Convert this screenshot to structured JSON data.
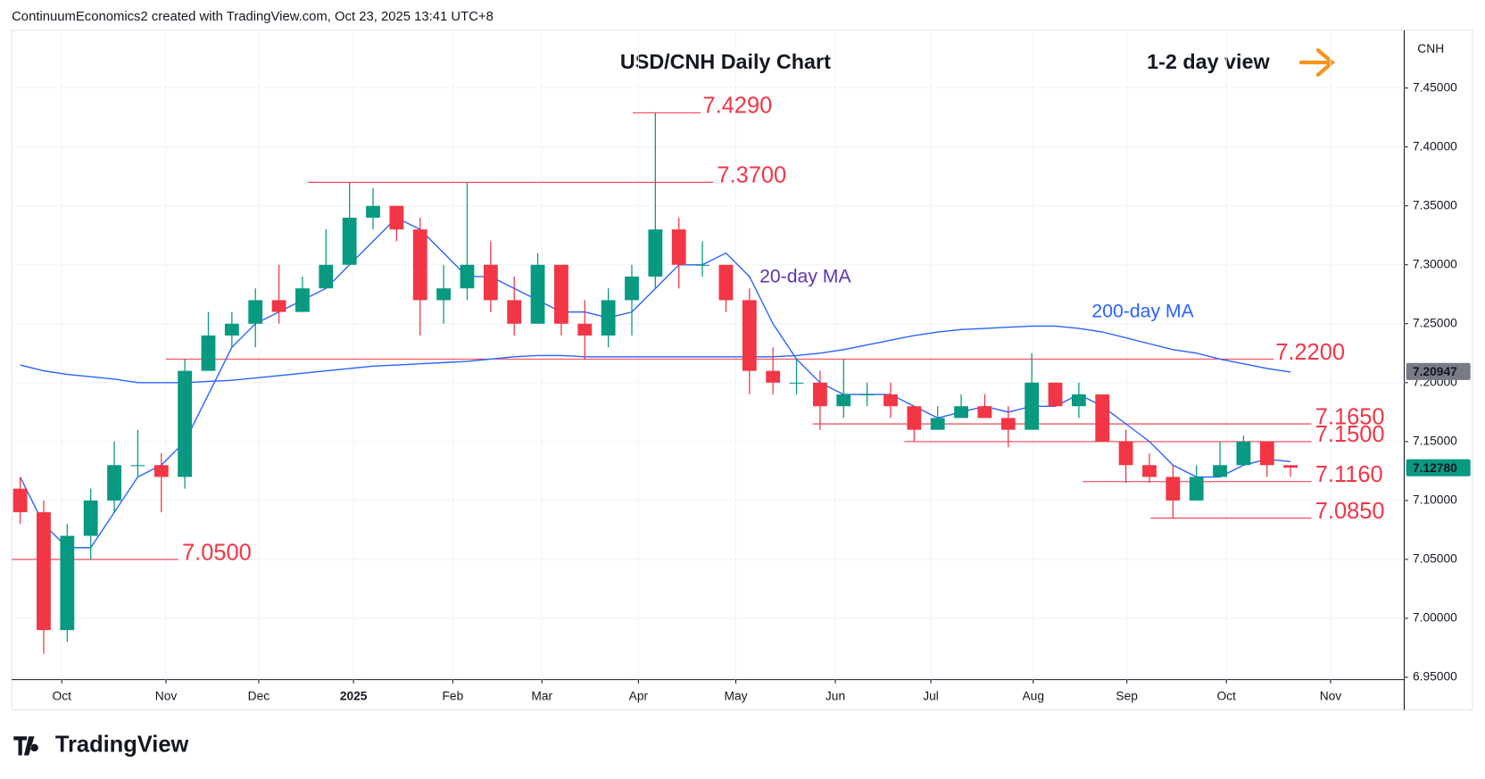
{
  "chart_data": {
    "type": "candlestick",
    "header": "ContinuumEconomics2 created with TradingView.com, Oct 23, 2025 13:41 UTC+8",
    "title": "USD/CNH Daily Chart",
    "view_label": "1-2 day view",
    "axis_unit": "CNH",
    "logo": "TradingView",
    "categories": [
      null,
      null,
      null,
      null,
      null,
      null,
      null,
      null,
      null,
      null,
      null,
      null,
      null,
      null,
      null,
      null,
      null,
      null,
      null,
      null,
      null,
      null,
      null,
      null,
      null,
      null,
      null,
      null,
      null,
      null,
      null,
      null,
      null,
      null,
      null,
      null,
      null,
      null,
      null,
      null,
      null,
      null,
      null,
      null,
      null,
      null,
      null,
      null,
      null,
      null,
      null,
      null,
      null,
      null,
      null
    ],
    "open": [
      7.11,
      7.09,
      6.99,
      7.07,
      7.1,
      7.13,
      7.13,
      7.12,
      7.21,
      7.24,
      7.25,
      7.27,
      7.26,
      7.28,
      7.3,
      7.34,
      7.35,
      7.33,
      7.27,
      7.28,
      7.3,
      7.27,
      7.25,
      7.3,
      7.25,
      7.24,
      7.27,
      7.29,
      7.33,
      7.3,
      7.3,
      7.27,
      7.21,
      7.2,
      7.2,
      7.18,
      7.19,
      7.19,
      7.18,
      7.16,
      7.17,
      7.18,
      7.17,
      7.16,
      7.2,
      7.18,
      7.19,
      7.15,
      7.13,
      7.12,
      7.1,
      7.12,
      7.13,
      7.15,
      7.13
    ],
    "high": [
      7.12,
      7.1,
      7.08,
      7.11,
      7.15,
      7.16,
      7.14,
      7.22,
      7.26,
      7.26,
      7.28,
      7.3,
      7.29,
      7.33,
      7.37,
      7.365,
      7.35,
      7.34,
      7.3,
      7.37,
      7.32,
      7.29,
      7.31,
      7.3,
      7.27,
      7.28,
      7.3,
      7.429,
      7.34,
      7.32,
      7.3,
      7.28,
      7.23,
      7.22,
      7.21,
      7.22,
      7.2,
      7.2,
      7.18,
      7.18,
      7.19,
      7.19,
      7.18,
      7.225,
      7.2,
      7.2,
      7.19,
      7.16,
      7.14,
      7.13,
      7.13,
      7.15,
      7.155,
      7.15,
      7.13
    ],
    "low": [
      7.08,
      6.97,
      6.98,
      7.05,
      7.09,
      7.12,
      7.09,
      7.11,
      7.21,
      7.23,
      7.23,
      7.25,
      7.26,
      7.28,
      7.3,
      7.33,
      7.32,
      7.24,
      7.25,
      7.27,
      7.26,
      7.24,
      7.25,
      7.24,
      7.22,
      7.23,
      7.24,
      7.28,
      7.28,
      7.29,
      7.26,
      7.19,
      7.19,
      7.19,
      7.16,
      7.17,
      7.18,
      7.17,
      7.15,
      7.16,
      7.17,
      7.17,
      7.145,
      7.16,
      7.18,
      7.17,
      7.15,
      7.115,
      7.115,
      7.085,
      7.1,
      7.12,
      7.13,
      7.12,
      7.12
    ],
    "close": [
      7.09,
      6.99,
      7.07,
      7.1,
      7.13,
      7.13,
      7.12,
      7.21,
      7.24,
      7.25,
      7.27,
      7.26,
      7.28,
      7.3,
      7.34,
      7.35,
      7.33,
      7.27,
      7.28,
      7.3,
      7.27,
      7.25,
      7.3,
      7.25,
      7.24,
      7.27,
      7.29,
      7.33,
      7.3,
      7.3,
      7.27,
      7.21,
      7.2,
      7.2,
      7.18,
      7.19,
      7.19,
      7.18,
      7.16,
      7.17,
      7.18,
      7.17,
      7.16,
      7.2,
      7.18,
      7.19,
      7.15,
      7.13,
      7.12,
      7.1,
      7.12,
      7.13,
      7.15,
      7.13,
      7.1278
    ],
    "up_color": "#089981",
    "down_color": "#f23645",
    "series": [
      {
        "name": "20-day MA",
        "color": "#2962ff",
        "values": [
          7.12,
          7.08,
          7.06,
          7.06,
          7.09,
          7.12,
          7.13,
          7.15,
          7.19,
          7.23,
          7.25,
          7.26,
          7.27,
          7.28,
          7.3,
          7.32,
          7.34,
          7.33,
          7.31,
          7.29,
          7.29,
          7.28,
          7.27,
          7.26,
          7.26,
          7.255,
          7.26,
          7.28,
          7.3,
          7.3,
          7.31,
          7.29,
          7.25,
          7.22,
          7.2,
          7.19,
          7.19,
          7.19,
          7.18,
          7.17,
          7.175,
          7.18,
          7.175,
          7.18,
          7.18,
          7.19,
          7.18,
          7.165,
          7.15,
          7.13,
          7.12,
          7.12,
          7.13,
          7.135,
          7.133
        ]
      },
      {
        "name": "200-day MA",
        "color": "#2962ff",
        "values": [
          7.215,
          7.21,
          7.207,
          7.205,
          7.203,
          7.2,
          7.2,
          7.2,
          7.201,
          7.202,
          7.204,
          7.206,
          7.208,
          7.21,
          7.212,
          7.214,
          7.215,
          7.216,
          7.217,
          7.218,
          7.22,
          7.222,
          7.223,
          7.223,
          7.222,
          7.222,
          7.222,
          7.222,
          7.222,
          7.222,
          7.222,
          7.222,
          7.222,
          7.223,
          7.225,
          7.228,
          7.232,
          7.236,
          7.24,
          7.243,
          7.245,
          7.246,
          7.247,
          7.248,
          7.248,
          7.246,
          7.243,
          7.238,
          7.233,
          7.228,
          7.225,
          7.22,
          7.216,
          7.212,
          7.209
        ]
      }
    ],
    "levels": [
      {
        "value": 7.429,
        "label": "7.4290"
      },
      {
        "value": 7.37,
        "label": "7.3700"
      },
      {
        "value": 7.22,
        "label": "7.2200"
      },
      {
        "value": 7.165,
        "label": "7.1650"
      },
      {
        "value": 7.15,
        "label": "7.1500"
      },
      {
        "value": 7.116,
        "label": "7.1160"
      },
      {
        "value": 7.085,
        "label": "7.0850"
      },
      {
        "value": 7.05,
        "label": "7.0500"
      }
    ],
    "level_color": "#f23645",
    "price_tags": [
      {
        "value": 7.20947,
        "label": "7.20947",
        "color": "#787b86"
      },
      {
        "value": 7.1278,
        "label": "7.12780",
        "color": "#089981"
      }
    ],
    "ylim": [
      6.948,
      7.499
    ],
    "yticks": [
      {
        "value": 7.45,
        "label": "7.45000"
      },
      {
        "value": 7.4,
        "label": "7.40000"
      },
      {
        "value": 7.35,
        "label": "7.35000"
      },
      {
        "value": 7.3,
        "label": "7.30000"
      },
      {
        "value": 7.25,
        "label": "7.25000"
      },
      {
        "value": 7.2,
        "label": "7.20000"
      },
      {
        "value": 7.15,
        "label": "7.15000"
      },
      {
        "value": 7.1,
        "label": "7.10000"
      },
      {
        "value": 7.05,
        "label": "7.05000"
      },
      {
        "value": 7.0,
        "label": "7.00000"
      },
      {
        "value": 6.95,
        "label": "6.95000"
      }
    ],
    "xlim": [
      -0.36,
      58.83
    ],
    "xticks": [
      {
        "value": 1.77,
        "label": "Oct"
      },
      {
        "value": 6.2,
        "label": "Nov"
      },
      {
        "value": 10.14,
        "label": "Dec"
      },
      {
        "value": 14.17,
        "label": "2025"
      },
      {
        "value": 18.39,
        "label": "Feb"
      },
      {
        "value": 22.18,
        "label": "Mar"
      },
      {
        "value": 26.28,
        "label": "Apr"
      },
      {
        "value": 30.42,
        "label": "May"
      },
      {
        "value": 34.65,
        "label": "Jun"
      },
      {
        "value": 38.71,
        "label": "Jul"
      },
      {
        "value": 43.06,
        "label": "Aug"
      },
      {
        "value": 47.04,
        "label": "Sep"
      },
      {
        "value": 51.27,
        "label": "Oct"
      },
      {
        "value": 55.7,
        "label": "Nov"
      }
    ],
    "grid": true
  }
}
